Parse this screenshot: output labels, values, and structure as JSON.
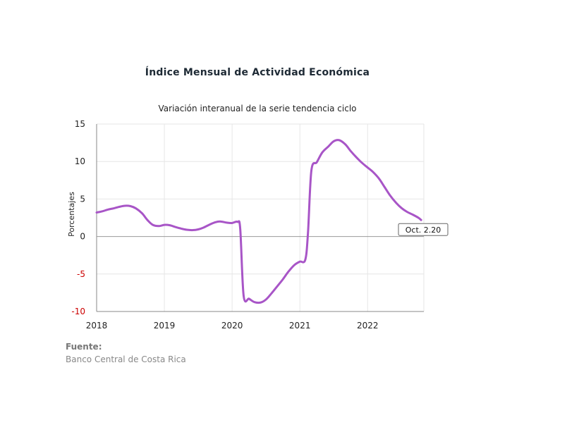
{
  "title": "Índice Mensual de  Actividad Económica",
  "subtitle": "Variación interanual de la serie tendencia ciclo",
  "source": {
    "label": "Fuente:",
    "text": "Banco Central de Costa Rica"
  },
  "colors": {
    "series": "#a855c7",
    "negative_tick": "#cc0000",
    "grid": "#e6e6e6",
    "zero_line": "#999999"
  },
  "chart_data": {
    "type": "line",
    "ylabel": "Porcentajes",
    "xlabel": "",
    "ylim": [
      -10,
      15
    ],
    "xlim": [
      2018,
      2022.83
    ],
    "x_ticks": [
      "2018",
      "2019",
      "2020",
      "2021",
      "2022"
    ],
    "y_ticks": [
      "15",
      "10",
      "5",
      "0",
      "-5",
      "-10"
    ],
    "grid": true,
    "annotation": {
      "text": "Oct. 2.20",
      "x": 2022.79,
      "y": 2.2
    },
    "series": [
      {
        "values": [
          [
            2018.0,
            3.2
          ],
          [
            2018.08,
            3.35
          ],
          [
            2018.17,
            3.6
          ],
          [
            2018.25,
            3.75
          ],
          [
            2018.33,
            3.95
          ],
          [
            2018.42,
            4.1
          ],
          [
            2018.5,
            4.05
          ],
          [
            2018.58,
            3.75
          ],
          [
            2018.67,
            3.1
          ],
          [
            2018.75,
            2.2
          ],
          [
            2018.83,
            1.55
          ],
          [
            2018.92,
            1.4
          ],
          [
            2019.0,
            1.55
          ],
          [
            2019.08,
            1.5
          ],
          [
            2019.17,
            1.25
          ],
          [
            2019.25,
            1.05
          ],
          [
            2019.33,
            0.9
          ],
          [
            2019.42,
            0.85
          ],
          [
            2019.5,
            0.95
          ],
          [
            2019.58,
            1.2
          ],
          [
            2019.67,
            1.6
          ],
          [
            2019.75,
            1.9
          ],
          [
            2019.83,
            2.0
          ],
          [
            2019.92,
            1.85
          ],
          [
            2020.0,
            1.8
          ],
          [
            2020.08,
            1.95
          ],
          [
            2020.12,
            1.0
          ],
          [
            2020.17,
            -7.9
          ],
          [
            2020.25,
            -8.3
          ],
          [
            2020.33,
            -8.75
          ],
          [
            2020.42,
            -8.8
          ],
          [
            2020.5,
            -8.4
          ],
          [
            2020.58,
            -7.6
          ],
          [
            2020.67,
            -6.6
          ],
          [
            2020.75,
            -5.7
          ],
          [
            2020.83,
            -4.7
          ],
          [
            2020.92,
            -3.8
          ],
          [
            2021.0,
            -3.35
          ],
          [
            2021.08,
            -3.1
          ],
          [
            2021.12,
            0.5
          ],
          [
            2021.17,
            8.8
          ],
          [
            2021.25,
            9.9
          ],
          [
            2021.33,
            11.2
          ],
          [
            2021.42,
            12.0
          ],
          [
            2021.5,
            12.7
          ],
          [
            2021.58,
            12.85
          ],
          [
            2021.67,
            12.3
          ],
          [
            2021.75,
            11.4
          ],
          [
            2021.83,
            10.6
          ],
          [
            2021.92,
            9.8
          ],
          [
            2022.0,
            9.2
          ],
          [
            2022.08,
            8.6
          ],
          [
            2022.17,
            7.7
          ],
          [
            2022.25,
            6.6
          ],
          [
            2022.33,
            5.5
          ],
          [
            2022.42,
            4.5
          ],
          [
            2022.5,
            3.8
          ],
          [
            2022.58,
            3.3
          ],
          [
            2022.67,
            2.9
          ],
          [
            2022.75,
            2.5
          ],
          [
            2022.79,
            2.2
          ]
        ]
      }
    ]
  }
}
